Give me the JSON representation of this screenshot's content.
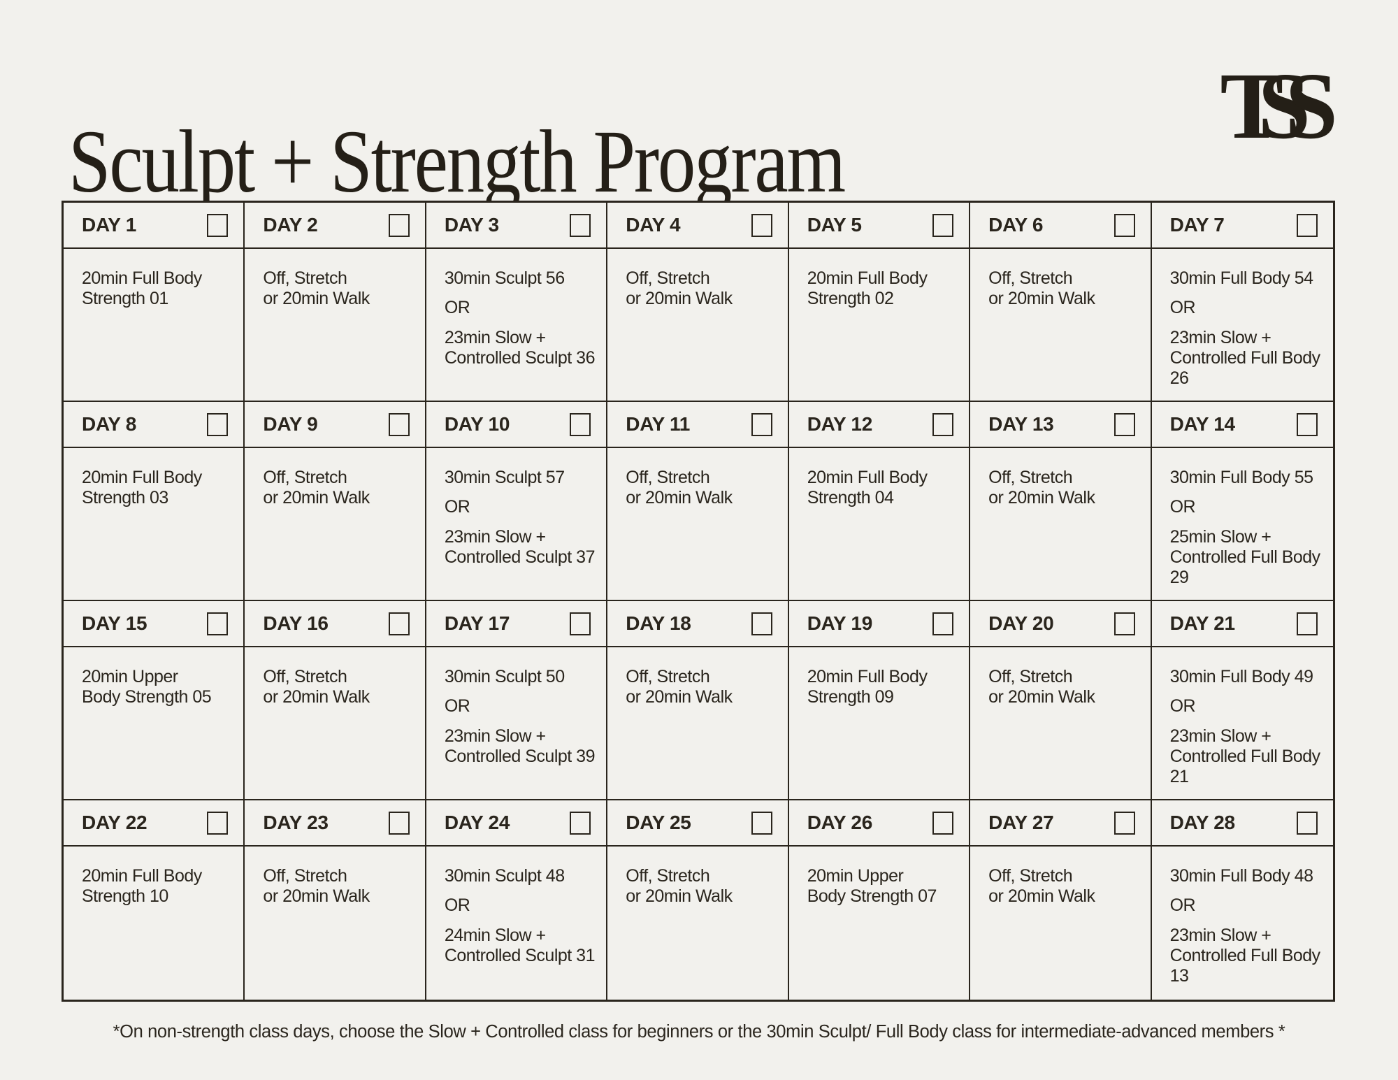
{
  "page": {
    "title": "Sculpt + Strength Program",
    "logo": "TSS",
    "footnote": "*On non-strength class days, choose the Slow + Controlled class for beginners or the 30min Sculpt/ Full Body class for intermediate-advanced members *"
  },
  "colors": {
    "background": "#f2f1ed",
    "ink": "#2a251d"
  },
  "calendar": {
    "weeks": 4,
    "days_per_week": 7,
    "checkbox_state": "unchecked",
    "days": [
      {
        "label": "DAY 1",
        "checked": false,
        "paragraphs": [
          "20min Full Body\nStrength 01"
        ]
      },
      {
        "label": "DAY 2",
        "checked": false,
        "paragraphs": [
          "Off, Stretch\nor 20min Walk"
        ]
      },
      {
        "label": "DAY 3",
        "checked": false,
        "paragraphs": [
          "30min Sculpt 56",
          "OR",
          "23min Slow +\nControlled Sculpt 36"
        ]
      },
      {
        "label": "DAY 4",
        "checked": false,
        "paragraphs": [
          "Off, Stretch\nor 20min Walk"
        ]
      },
      {
        "label": "DAY 5",
        "checked": false,
        "paragraphs": [
          "20min Full Body\nStrength 02"
        ]
      },
      {
        "label": "DAY 6",
        "checked": false,
        "paragraphs": [
          "Off, Stretch\nor 20min Walk"
        ]
      },
      {
        "label": "DAY 7",
        "checked": false,
        "paragraphs": [
          "30min Full Body 54",
          "OR",
          "23min Slow +\nControlled Full Body\n26"
        ]
      },
      {
        "label": "DAY 8",
        "checked": false,
        "paragraphs": [
          "20min Full Body\nStrength 03"
        ]
      },
      {
        "label": "DAY 9",
        "checked": false,
        "paragraphs": [
          "Off, Stretch\nor 20min Walk"
        ]
      },
      {
        "label": "DAY 10",
        "checked": false,
        "paragraphs": [
          "30min Sculpt 57",
          "OR",
          "23min Slow +\nControlled Sculpt 37"
        ]
      },
      {
        "label": "DAY 11",
        "checked": false,
        "paragraphs": [
          "Off, Stretch\nor 20min Walk"
        ]
      },
      {
        "label": "DAY 12",
        "checked": false,
        "paragraphs": [
          "20min Full Body\nStrength 04"
        ]
      },
      {
        "label": "DAY 13",
        "checked": false,
        "paragraphs": [
          "Off, Stretch\nor 20min Walk"
        ]
      },
      {
        "label": "DAY 14",
        "checked": false,
        "paragraphs": [
          "30min Full Body 55",
          "OR",
          "25min Slow +\nControlled Full Body\n29"
        ]
      },
      {
        "label": "DAY 15",
        "checked": false,
        "paragraphs": [
          "20min Upper\nBody Strength 05"
        ]
      },
      {
        "label": "DAY 16",
        "checked": false,
        "paragraphs": [
          "Off, Stretch\nor 20min Walk"
        ]
      },
      {
        "label": "DAY 17",
        "checked": false,
        "paragraphs": [
          "30min Sculpt 50",
          "OR",
          "23min Slow +\nControlled Sculpt 39"
        ]
      },
      {
        "label": "DAY 18",
        "checked": false,
        "paragraphs": [
          "Off, Stretch\nor 20min Walk"
        ]
      },
      {
        "label": "DAY 19",
        "checked": false,
        "paragraphs": [
          "20min Full Body\nStrength 09"
        ]
      },
      {
        "label": "DAY 20",
        "checked": false,
        "paragraphs": [
          "Off, Stretch\nor 20min Walk"
        ]
      },
      {
        "label": "DAY 21",
        "checked": false,
        "paragraphs": [
          "30min Full Body 49",
          "OR",
          "23min Slow +\nControlled Full Body\n21"
        ]
      },
      {
        "label": "DAY 22",
        "checked": false,
        "paragraphs": [
          "20min Full Body\nStrength 10"
        ]
      },
      {
        "label": "DAY 23",
        "checked": false,
        "paragraphs": [
          "Off, Stretch\nor 20min Walk"
        ]
      },
      {
        "label": "DAY 24",
        "checked": false,
        "paragraphs": [
          "30min Sculpt 48",
          "OR",
          "24min Slow +\nControlled Sculpt 31"
        ]
      },
      {
        "label": "DAY 25",
        "checked": false,
        "paragraphs": [
          "Off, Stretch\nor 20min Walk"
        ]
      },
      {
        "label": "DAY 26",
        "checked": false,
        "paragraphs": [
          "20min Upper\nBody Strength 07"
        ]
      },
      {
        "label": "DAY 27",
        "checked": false,
        "paragraphs": [
          "Off, Stretch\nor 20min Walk"
        ]
      },
      {
        "label": "DAY 28",
        "checked": false,
        "paragraphs": [
          "30min Full Body 48",
          "OR",
          "23min Slow +\nControlled Full Body\n13"
        ]
      }
    ]
  }
}
